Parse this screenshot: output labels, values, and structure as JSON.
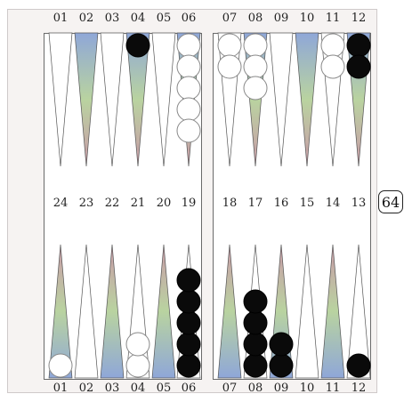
{
  "top_labels": [
    "01",
    "02",
    "03",
    "04",
    "05",
    "06",
    "07",
    "08",
    "09",
    "10",
    "11",
    "12"
  ],
  "middle_labels": [
    "24",
    "23",
    "22",
    "21",
    "20",
    "19",
    "18",
    "17",
    "16",
    "15",
    "14",
    "13"
  ],
  "bottom_labels": [
    "01",
    "02",
    "03",
    "04",
    "05",
    "06",
    "07",
    "08",
    "09",
    "10",
    "11",
    "12"
  ],
  "cube_value": "64",
  "colors": {
    "black_checker": "#0a0a0a",
    "white_checker": "#ffffff",
    "point_tint_a": "#8fa7d8",
    "point_tint_b": "#b9d3a0",
    "point_tint_c": "#c99aa8"
  },
  "checkers": {
    "top": [
      {
        "point": "04",
        "color": "black",
        "count": 1
      },
      {
        "point": "06",
        "color": "white",
        "count": 5
      },
      {
        "point": "07",
        "color": "white",
        "count": 2
      },
      {
        "point": "08",
        "color": "white",
        "count": 3
      },
      {
        "point": "11",
        "color": "white",
        "count": 2
      },
      {
        "point": "12",
        "color": "black",
        "count": 2
      }
    ],
    "bottom": [
      {
        "point": "01",
        "color": "white",
        "count": 1
      },
      {
        "point": "04",
        "color": "white",
        "count": 2
      },
      {
        "point": "06",
        "color": "black",
        "count": 5
      },
      {
        "point": "08",
        "color": "black",
        "count": 4
      },
      {
        "point": "09",
        "color": "black",
        "count": 2
      },
      {
        "point": "12",
        "color": "black",
        "count": 1
      }
    ]
  }
}
